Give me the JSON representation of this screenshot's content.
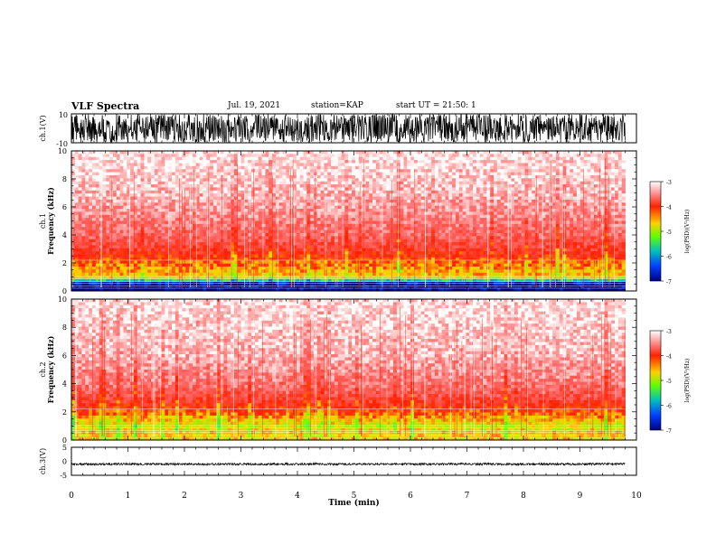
{
  "header": {
    "title": "VLF Spectra",
    "date": "Jul. 19, 2021",
    "station": "station=KAP",
    "start": "start UT = 21:50: 1"
  },
  "colorbar": {
    "label": "log(PSD)(V²/Hz)",
    "ticks": [
      "-3",
      "-4",
      "-5",
      "-6",
      "-7"
    ],
    "colors": [
      "#ffffff",
      "#ff4040",
      "#ff2000",
      "#ffd000",
      "#80ff00",
      "#00c0c0",
      "#0040ff",
      "#000080"
    ]
  },
  "chart_data": [
    {
      "type": "line",
      "panel": "ch1-waveform",
      "ylabel": "ch.1(V)",
      "ylim": [
        -10,
        10
      ],
      "y_tick_labels": [
        "10",
        "-10"
      ],
      "x_range_min": [
        0,
        10
      ],
      "data_end_min": 9.8,
      "description_values": {
        "typical_amplitude_V": 10,
        "saturated": true
      }
    },
    {
      "type": "heatmap",
      "panel": "ch1-spectrogram",
      "ylabel": "ch.1 Frequency (kHz)",
      "ylim": [
        0,
        10
      ],
      "y_tick_labels": [
        "0",
        "2",
        "4",
        "6",
        "8",
        "10"
      ],
      "x_range_min": [
        0,
        10
      ],
      "data_end_min": 9.8,
      "band_profile": [
        {
          "freq_khz": 0.5,
          "log_psd": -7.0
        },
        {
          "freq_khz": 1.0,
          "log_psd": -4.8
        },
        {
          "freq_khz": 2.0,
          "log_psd": -4.5
        },
        {
          "freq_khz": 3.0,
          "log_psd": -4.0
        },
        {
          "freq_khz": 4.0,
          "log_psd": -3.7
        },
        {
          "freq_khz": 6.0,
          "log_psd": -3.4
        },
        {
          "freq_khz": 8.0,
          "log_psd": -3.2
        },
        {
          "freq_khz": 10.0,
          "log_psd": -3.1
        }
      ]
    },
    {
      "type": "heatmap",
      "panel": "ch2-spectrogram",
      "ylabel": "ch.2 Frequency (kHz)",
      "ylim": [
        0,
        10
      ],
      "y_tick_labels": [
        "0",
        "2",
        "4",
        "6",
        "8",
        "10"
      ],
      "x_range_min": [
        0,
        10
      ],
      "data_end_min": 9.8,
      "band_profile": [
        {
          "freq_khz": 0.5,
          "log_psd": -4.8
        },
        {
          "freq_khz": 1.0,
          "log_psd": -5.0
        },
        {
          "freq_khz": 2.0,
          "log_psd": -4.4
        },
        {
          "freq_khz": 3.0,
          "log_psd": -3.9
        },
        {
          "freq_khz": 4.0,
          "log_psd": -3.6
        },
        {
          "freq_khz": 6.0,
          "log_psd": -3.3
        },
        {
          "freq_khz": 8.0,
          "log_psd": -3.2
        },
        {
          "freq_khz": 10.0,
          "log_psd": -3.1
        }
      ]
    },
    {
      "type": "line",
      "panel": "ch3-waveform",
      "ylabel": "ch.3(V)",
      "ylim": [
        -5,
        5
      ],
      "y_tick_labels": [
        "5",
        "0",
        "-5"
      ],
      "x_range_min": [
        0,
        10
      ],
      "data_end_min": 9.8,
      "description_values": {
        "offset_V": -1.0,
        "amplitude_V": 0.4
      }
    }
  ],
  "x_axis": {
    "label": "Time (min)",
    "tick_labels": [
      "0",
      "1",
      "2",
      "3",
      "4",
      "5",
      "6",
      "7",
      "8",
      "9",
      "10"
    ]
  }
}
